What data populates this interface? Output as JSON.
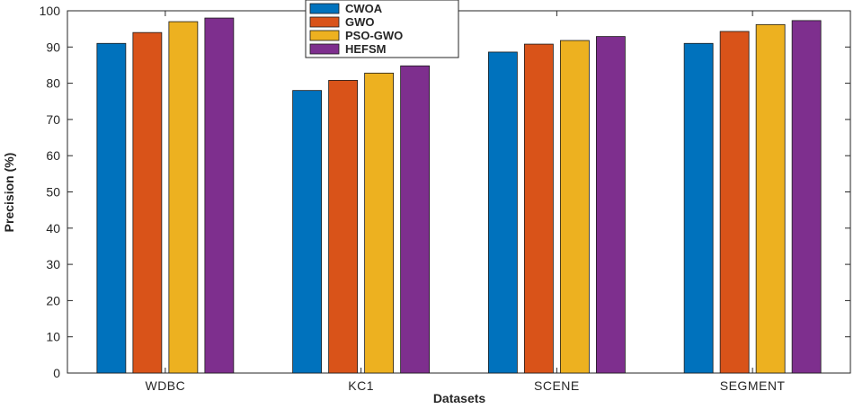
{
  "chart_data": {
    "type": "bar",
    "title": "",
    "xlabel": "Datasets",
    "ylabel": "Precision (%)",
    "ylim": [
      0,
      100
    ],
    "yticks": [
      0,
      10,
      20,
      30,
      40,
      50,
      60,
      70,
      80,
      90,
      100
    ],
    "grid": false,
    "legend_position": "top-center",
    "categories": [
      "WDBC",
      "KC1",
      "SCENE",
      "SEGMENT"
    ],
    "series": [
      {
        "name": "CWOA",
        "color": "#0072BD",
        "values": [
          91,
          78,
          88.6,
          91
        ]
      },
      {
        "name": "GWO",
        "color": "#D95319",
        "values": [
          94,
          80.8,
          90.8,
          94.3
        ]
      },
      {
        "name": "PSO-GWO",
        "color": "#EDB120",
        "values": [
          97,
          82.8,
          91.8,
          96.2
        ]
      },
      {
        "name": "HEFSM",
        "color": "#7E2F8E",
        "values": [
          98,
          84.8,
          92.9,
          97.3
        ]
      }
    ]
  }
}
